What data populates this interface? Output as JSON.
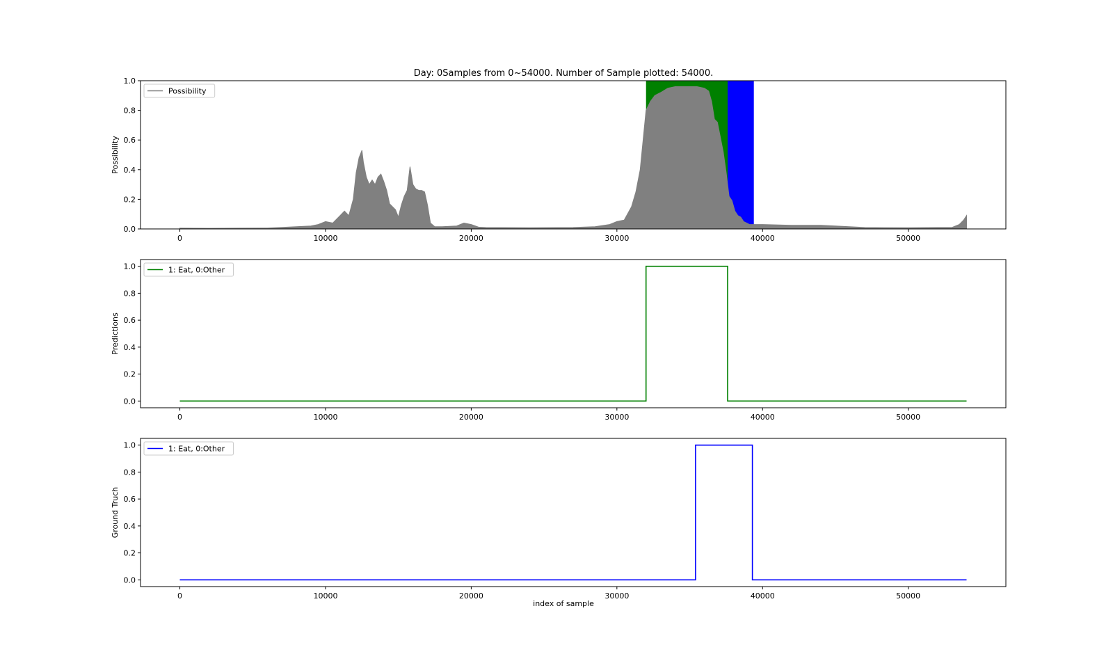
{
  "chart_data": {
    "title": "Day: 0Samples from 0~54000. Number of Sample plotted: 54000.",
    "xlabel": "index of sample",
    "xlim": [
      -2700,
      56700
    ],
    "x_ticks": [
      0,
      10000,
      20000,
      30000,
      40000,
      50000
    ],
    "subplots": [
      {
        "type": "area",
        "ylabel": "Possibility",
        "ylim": [
          0,
          1
        ],
        "y_ticks": [
          0.0,
          0.2,
          0.4,
          0.6,
          0.8,
          1.0
        ],
        "legend": {
          "placement": "top-left",
          "label": "Possibility",
          "color": "#808080"
        },
        "shaded_regions": [
          {
            "x_start": 32000,
            "x_end": 37600,
            "color": "#008000"
          },
          {
            "x_start": 37600,
            "x_end": 39400,
            "color": "#0000ff"
          }
        ],
        "series": [
          {
            "color": "#808080",
            "x": [
              0,
              2000,
              4000,
              6000,
              6900,
              7400,
              8000,
              9000,
              9500,
              10000,
              10500,
              11000,
              11300,
              11600,
              11900,
              12100,
              12300,
              12500,
              12600,
              12800,
              13000,
              13200,
              13400,
              13600,
              13800,
              14000,
              14200,
              14400,
              14600,
              14800,
              15000,
              15200,
              15400,
              15600,
              15800,
              16000,
              16200,
              16400,
              16600,
              16800,
              17000,
              17200,
              17500,
              18000,
              19000,
              19500,
              20000,
              20500,
              21000,
              24000,
              27000,
              28500,
              29500,
              30000,
              30500,
              31000,
              31300,
              31600,
              31800,
              32000,
              32300,
              32600,
              33000,
              33500,
              34000,
              34500,
              35000,
              35500,
              36000,
              36300,
              36500,
              36700,
              36900,
              37100,
              37300,
              37500,
              37700,
              37900,
              38100,
              38300,
              38500,
              38700,
              38900,
              39100,
              39300,
              39600,
              40000,
              42000,
              44000,
              45000,
              47000,
              50000,
              52000,
              53000,
              53500,
              53800,
              54000
            ],
            "values": [
              0.005,
              0.004,
              0.005,
              0.006,
              0.01,
              0.012,
              0.015,
              0.02,
              0.03,
              0.05,
              0.04,
              0.09,
              0.12,
              0.09,
              0.2,
              0.38,
              0.48,
              0.53,
              0.45,
              0.35,
              0.3,
              0.33,
              0.3,
              0.35,
              0.37,
              0.32,
              0.26,
              0.17,
              0.15,
              0.13,
              0.08,
              0.16,
              0.22,
              0.26,
              0.42,
              0.3,
              0.27,
              0.26,
              0.26,
              0.25,
              0.16,
              0.04,
              0.015,
              0.015,
              0.02,
              0.04,
              0.03,
              0.012,
              0.01,
              0.008,
              0.01,
              0.015,
              0.03,
              0.05,
              0.06,
              0.15,
              0.25,
              0.4,
              0.6,
              0.8,
              0.86,
              0.9,
              0.92,
              0.95,
              0.96,
              0.96,
              0.96,
              0.96,
              0.95,
              0.93,
              0.86,
              0.74,
              0.72,
              0.62,
              0.52,
              0.38,
              0.22,
              0.19,
              0.12,
              0.09,
              0.08,
              0.05,
              0.04,
              0.03,
              0.03,
              0.03,
              0.03,
              0.025,
              0.025,
              0.02,
              0.01,
              0.008,
              0.01,
              0.01,
              0.03,
              0.06,
              0.09
            ]
          }
        ]
      },
      {
        "type": "line",
        "ylabel": "Predictions",
        "ylim": [
          -0.05,
          1.05
        ],
        "y_ticks": [
          0.0,
          0.2,
          0.4,
          0.6,
          0.8,
          1.0
        ],
        "legend": {
          "placement": "top-left",
          "label": "1: Eat, 0:Other",
          "color": "#008000"
        },
        "series": [
          {
            "color": "#008000",
            "x": [
              0,
              32000,
              32000,
              37600,
              37600,
              54000
            ],
            "values": [
              0,
              0,
              1,
              1,
              0,
              0
            ]
          }
        ]
      },
      {
        "type": "line",
        "ylabel": "Ground Truch",
        "ylim": [
          -0.05,
          1.05
        ],
        "y_ticks": [
          0.0,
          0.2,
          0.4,
          0.6,
          0.8,
          1.0
        ],
        "legend": {
          "placement": "top-left",
          "label": "1: Eat, 0:Other",
          "color": "#0000ff"
        },
        "series": [
          {
            "color": "#0000ff",
            "x": [
              0,
              35400,
              35400,
              39300,
              39300,
              54000
            ],
            "values": [
              0,
              0,
              1,
              1,
              0,
              0
            ]
          }
        ]
      }
    ]
  }
}
